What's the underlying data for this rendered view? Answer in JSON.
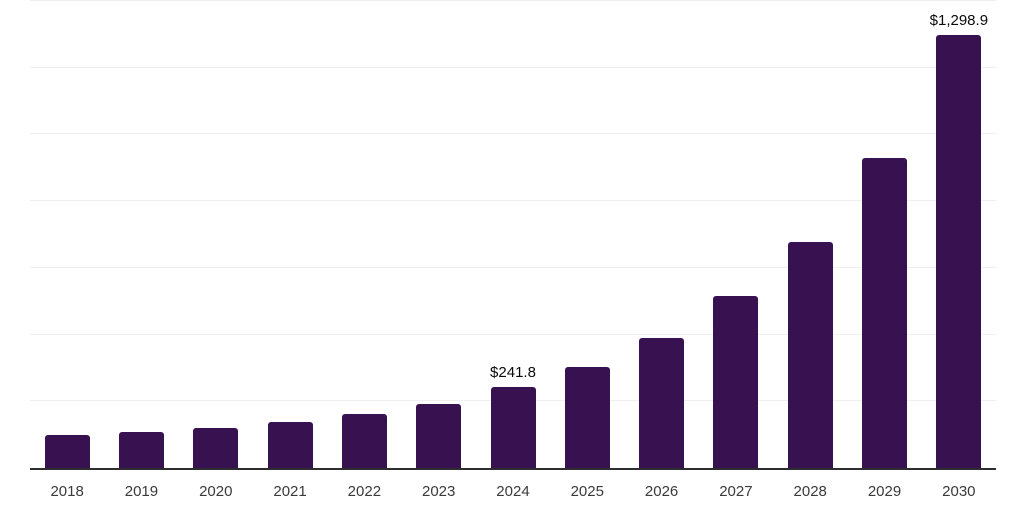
{
  "chart_data": {
    "type": "bar",
    "title": "",
    "xlabel": "",
    "ylabel": "",
    "categories": [
      "2018",
      "2019",
      "2020",
      "2021",
      "2022",
      "2023",
      "2024",
      "2025",
      "2026",
      "2027",
      "2028",
      "2029",
      "2030"
    ],
    "values": [
      100.3,
      109.1,
      121.1,
      139.2,
      161.0,
      192.5,
      241.8,
      304.2,
      390.4,
      514.9,
      679.0,
      929.9,
      1298.9
    ],
    "value_labels": [
      "",
      "",
      "",
      "",
      "",
      "",
      "$241.8",
      "",
      "",
      "",
      "",
      "",
      "$1,298.9"
    ],
    "ylim": [
      0,
      1400
    ],
    "grid_step": 200,
    "grid": true,
    "legend": false,
    "y_tick_labels_visible": false,
    "colors": {
      "bar": "#381150",
      "grid_line": "#EFEEF2",
      "axis_line": "#2D2D32",
      "tick_label": "#3A3A3A",
      "value_label": "#0A0A0A",
      "background": "#FFFFFF"
    }
  }
}
